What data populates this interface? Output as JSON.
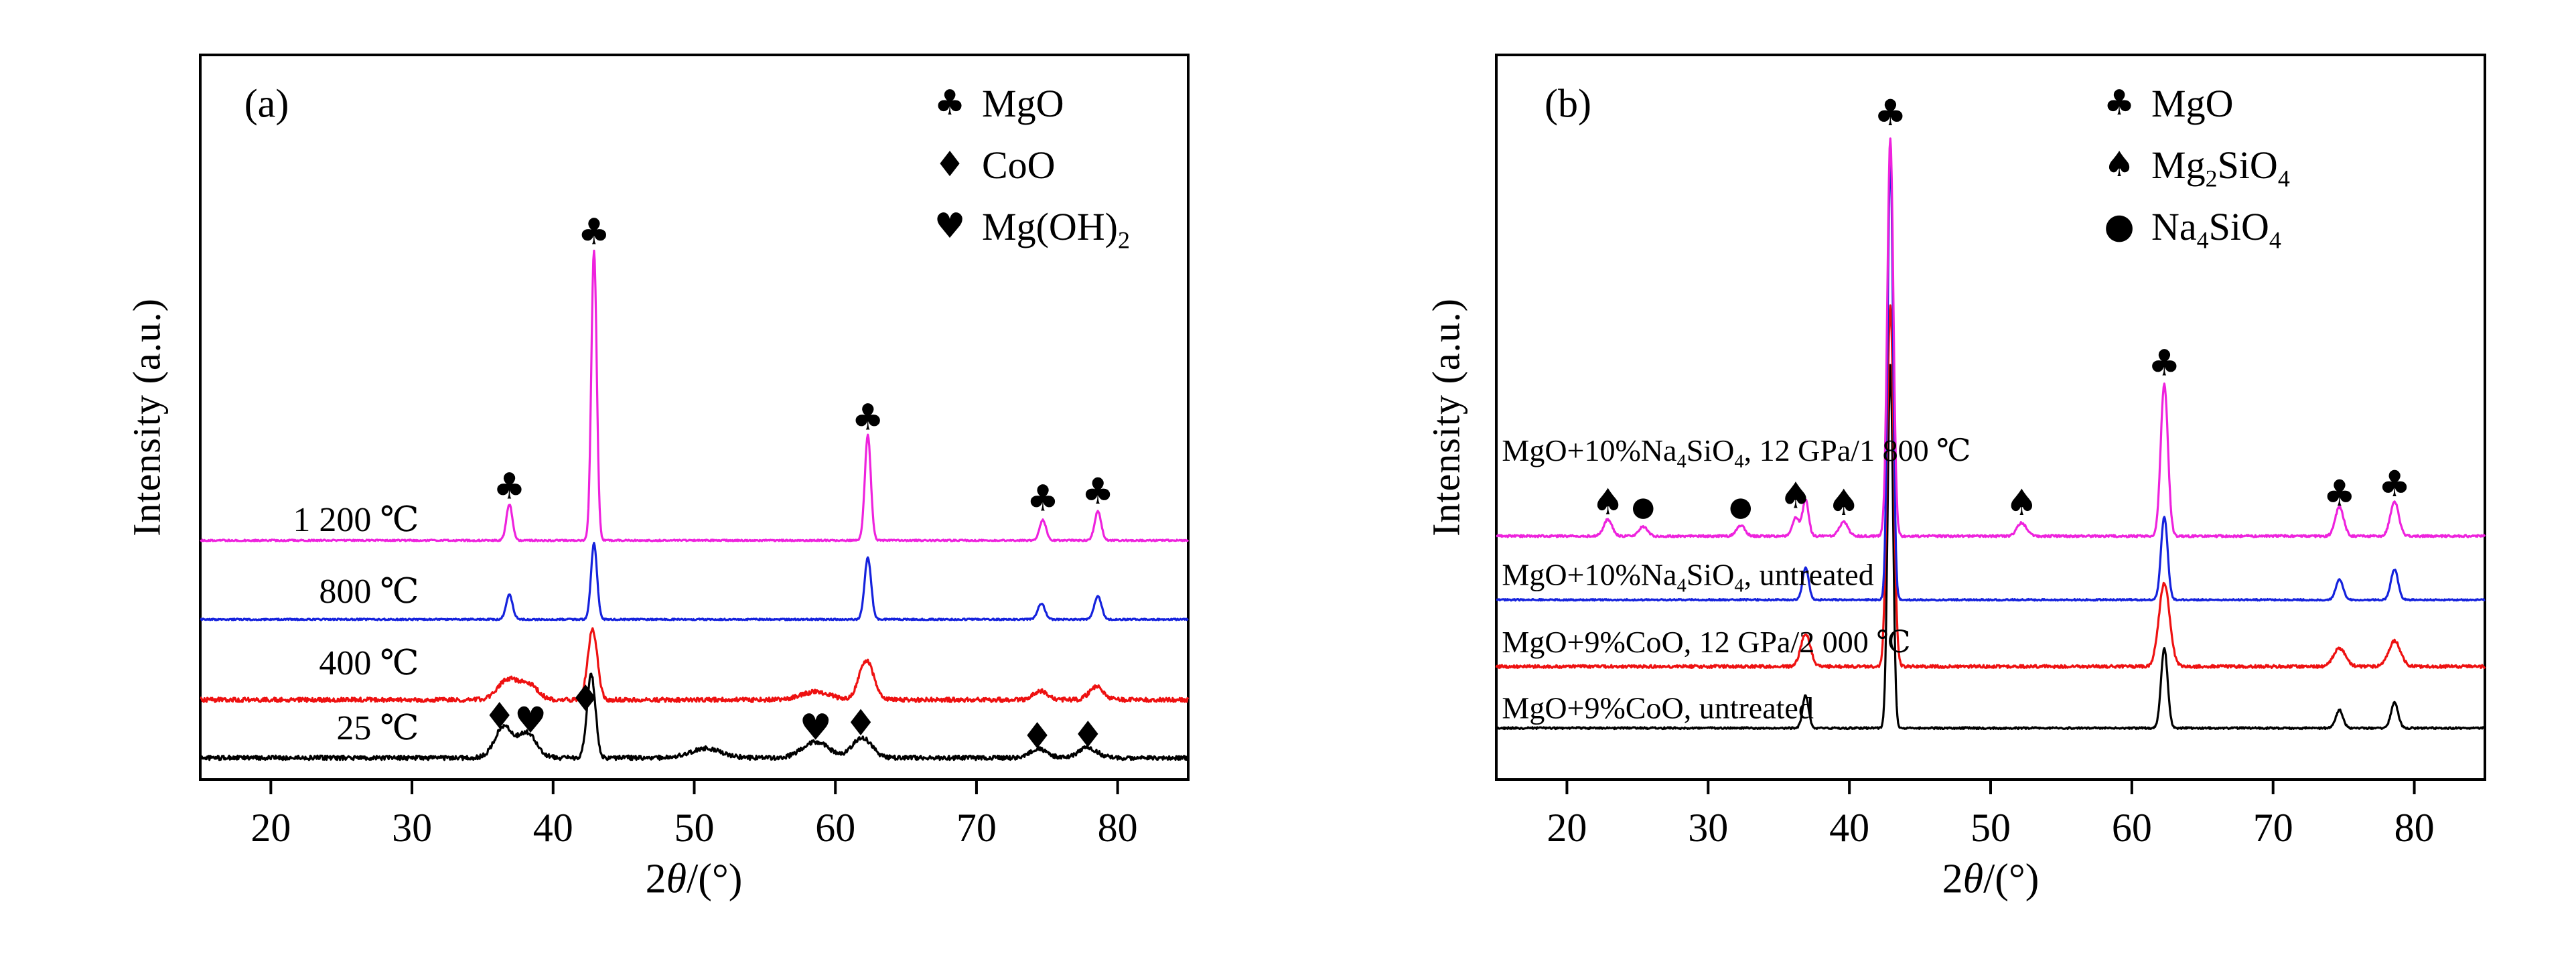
{
  "figure": {
    "background": "#ffffff"
  },
  "chart_data": [
    {
      "type": "line",
      "panel_label": "(a)",
      "xlabel": "2θ/(°)",
      "ylabel": "Intensity (a.u.)",
      "xlim": [
        15,
        85
      ],
      "x_ticks": [
        20,
        30,
        40,
        50,
        60,
        70,
        80
      ],
      "grid": false,
      "legend_position": "top-right-inside",
      "legend": [
        {
          "symbol": "♣",
          "label": "MgO"
        },
        {
          "symbol": "♦",
          "label": "CoO"
        },
        {
          "symbol": "♥",
          "label": "Mg(OH)2"
        }
      ],
      "series": [
        {
          "name": "25 ℃",
          "color": "#000000",
          "baseline": 3.0,
          "noise": 0.3,
          "label_pos": {
            "x": 30.5,
            "y": 7.1,
            "align": "end"
          },
          "peaks": [
            [
              36.5,
              4.3,
              1.5
            ],
            [
              38.2,
              3.4,
              1.5
            ],
            [
              42.7,
              11.5,
              0.7
            ],
            [
              50.8,
              1.3,
              2.6
            ],
            [
              58.6,
              2.2,
              2.2
            ],
            [
              61.9,
              2.8,
              1.6
            ],
            [
              74.4,
              1.2,
              1.5
            ],
            [
              77.9,
              1.4,
              1.5
            ]
          ]
        },
        {
          "name": "400 ℃",
          "color": "#ee1111",
          "baseline": 11.0,
          "noise": 0.3,
          "label_pos": {
            "x": 30.5,
            "y": 16.1,
            "align": "end"
          },
          "peaks": [
            [
              36.8,
              2.8,
              1.7
            ],
            [
              38.3,
              2.0,
              1.5
            ],
            [
              42.8,
              9.7,
              0.8
            ],
            [
              58.6,
              1.1,
              2.4
            ],
            [
              62.2,
              5.5,
              1.2
            ],
            [
              74.5,
              1.2,
              1.2
            ],
            [
              78.5,
              1.8,
              1.2
            ]
          ]
        },
        {
          "name": "800 ℃",
          "color": "#1522dd",
          "baseline": 22.1,
          "noise": 0.1,
          "label_pos": {
            "x": 30.5,
            "y": 26.0,
            "align": "end"
          },
          "peaks": [
            [
              36.9,
              3.4,
              0.55
            ],
            [
              42.9,
              10.5,
              0.5
            ],
            [
              62.3,
              8.5,
              0.55
            ],
            [
              74.6,
              2.2,
              0.6
            ],
            [
              78.6,
              3.2,
              0.6
            ]
          ]
        },
        {
          "name": "1 200 ℃",
          "color": "#ee22dd",
          "baseline": 33.0,
          "noise": 0.1,
          "label_pos": {
            "x": 30.5,
            "y": 35.9,
            "align": "end"
          },
          "peaks": [
            [
              36.9,
              5.0,
              0.5
            ],
            [
              42.9,
              40.0,
              0.45
            ],
            [
              62.3,
              14.5,
              0.5
            ],
            [
              74.7,
              2.8,
              0.55
            ],
            [
              78.6,
              4.0,
              0.55
            ]
          ]
        }
      ],
      "markers": [
        {
          "symbol": "♣",
          "x": 36.9,
          "y": 40.5
        },
        {
          "symbol": "♣",
          "x": 42.9,
          "y": 75.6
        },
        {
          "symbol": "♣",
          "x": 62.3,
          "y": 50.0
        },
        {
          "symbol": "♣",
          "x": 74.7,
          "y": 38.8
        },
        {
          "symbol": "♣",
          "x": 78.6,
          "y": 39.8
        },
        {
          "symbol": "♦",
          "x": 36.2,
          "y": 8.8
        },
        {
          "symbol": "♥",
          "x": 38.4,
          "y": 8.2
        },
        {
          "symbol": "♦",
          "x": 42.3,
          "y": 11.2
        },
        {
          "symbol": "♥",
          "x": 58.6,
          "y": 7.2
        },
        {
          "symbol": "♦",
          "x": 61.8,
          "y": 7.8
        },
        {
          "symbol": "♦",
          "x": 74.3,
          "y": 6.0
        },
        {
          "symbol": "♦",
          "x": 77.9,
          "y": 6.2
        }
      ]
    },
    {
      "type": "line",
      "panel_label": "(b)",
      "xlabel": "2θ/(°)",
      "ylabel": "Intensity (a.u.)",
      "xlim": [
        15,
        85
      ],
      "x_ticks": [
        20,
        30,
        40,
        50,
        60,
        70,
        80
      ],
      "grid": false,
      "legend_position": "top-right-inside",
      "legend": [
        {
          "symbol": "♣",
          "label": "MgO"
        },
        {
          "symbol": "♠",
          "label": "Mg2SiO4"
        },
        {
          "symbol": "●",
          "label": "Na4SiO4"
        }
      ],
      "series": [
        {
          "name": "MgO+9%CoO, untreated",
          "color": "#000000",
          "baseline": 7.1,
          "noise": 0.12,
          "label_pos": {
            "x": 15.4,
            "y": 9.9,
            "align": "start"
          },
          "peaks": [
            [
              36.9,
              4.5,
              0.5
            ],
            [
              42.9,
              50.0,
              0.45
            ],
            [
              62.3,
              11.0,
              0.55
            ],
            [
              74.7,
              2.5,
              0.6
            ],
            [
              78.6,
              3.5,
              0.6
            ]
          ]
        },
        {
          "name": "MgO+9%CoO, 12 GPa/2 000 ℃",
          "color": "#ee1111",
          "baseline": 15.6,
          "noise": 0.2,
          "label_pos": {
            "x": 15.4,
            "y": 19.0,
            "align": "start"
          },
          "peaks": [
            [
              36.9,
              4.5,
              0.8
            ],
            [
              42.9,
              50.0,
              0.55
            ],
            [
              62.3,
              11.5,
              0.9
            ],
            [
              74.7,
              2.5,
              1.0
            ],
            [
              78.6,
              3.5,
              1.0
            ]
          ]
        },
        {
          "name": "MgO+10%Na4SiO4, untreated",
          "color": "#1522dd",
          "baseline": 24.8,
          "noise": 0.1,
          "label_pos": {
            "x": 15.4,
            "y": 28.3,
            "align": "start"
          },
          "peaks": [
            [
              36.9,
              4.5,
              0.5
            ],
            [
              42.9,
              62.0,
              0.45
            ],
            [
              62.3,
              11.5,
              0.55
            ],
            [
              74.7,
              2.8,
              0.6
            ],
            [
              78.6,
              4.2,
              0.6
            ]
          ]
        },
        {
          "name": "MgO+10%Na4SiO4, 12 GPa/1 800 ℃",
          "color": "#ee22dd",
          "baseline": 33.6,
          "noise": 0.15,
          "label_pos": {
            "x": 15.4,
            "y": 45.5,
            "align": "start"
          },
          "peaks": [
            [
              22.9,
              2.3,
              0.7
            ],
            [
              25.4,
              1.3,
              0.7
            ],
            [
              32.3,
              1.5,
              0.7
            ],
            [
              36.2,
              2.5,
              0.6
            ],
            [
              36.9,
              5.0,
              0.5
            ],
            [
              39.6,
              2.0,
              0.7
            ],
            [
              42.9,
              55.0,
              0.5
            ],
            [
              52.2,
              1.8,
              0.8
            ],
            [
              62.3,
              21.0,
              0.6
            ],
            [
              74.7,
              4.0,
              0.7
            ],
            [
              78.6,
              4.8,
              0.7
            ]
          ]
        }
      ],
      "markers": [
        {
          "symbol": "♣",
          "x": 42.9,
          "y": 92.0
        },
        {
          "symbol": "♣",
          "x": 62.3,
          "y": 57.5
        },
        {
          "symbol": "♣",
          "x": 74.7,
          "y": 39.5
        },
        {
          "symbol": "♣",
          "x": 78.6,
          "y": 40.8
        },
        {
          "symbol": "♠",
          "x": 22.9,
          "y": 38.3
        },
        {
          "symbol": "●",
          "x": 25.4,
          "y": 37.6
        },
        {
          "symbol": "●",
          "x": 32.3,
          "y": 37.6
        },
        {
          "symbol": "♠",
          "x": 36.2,
          "y": 39.2
        },
        {
          "symbol": "♠",
          "x": 39.6,
          "y": 38.2
        },
        {
          "symbol": "♠",
          "x": 52.2,
          "y": 38.2
        }
      ]
    }
  ]
}
